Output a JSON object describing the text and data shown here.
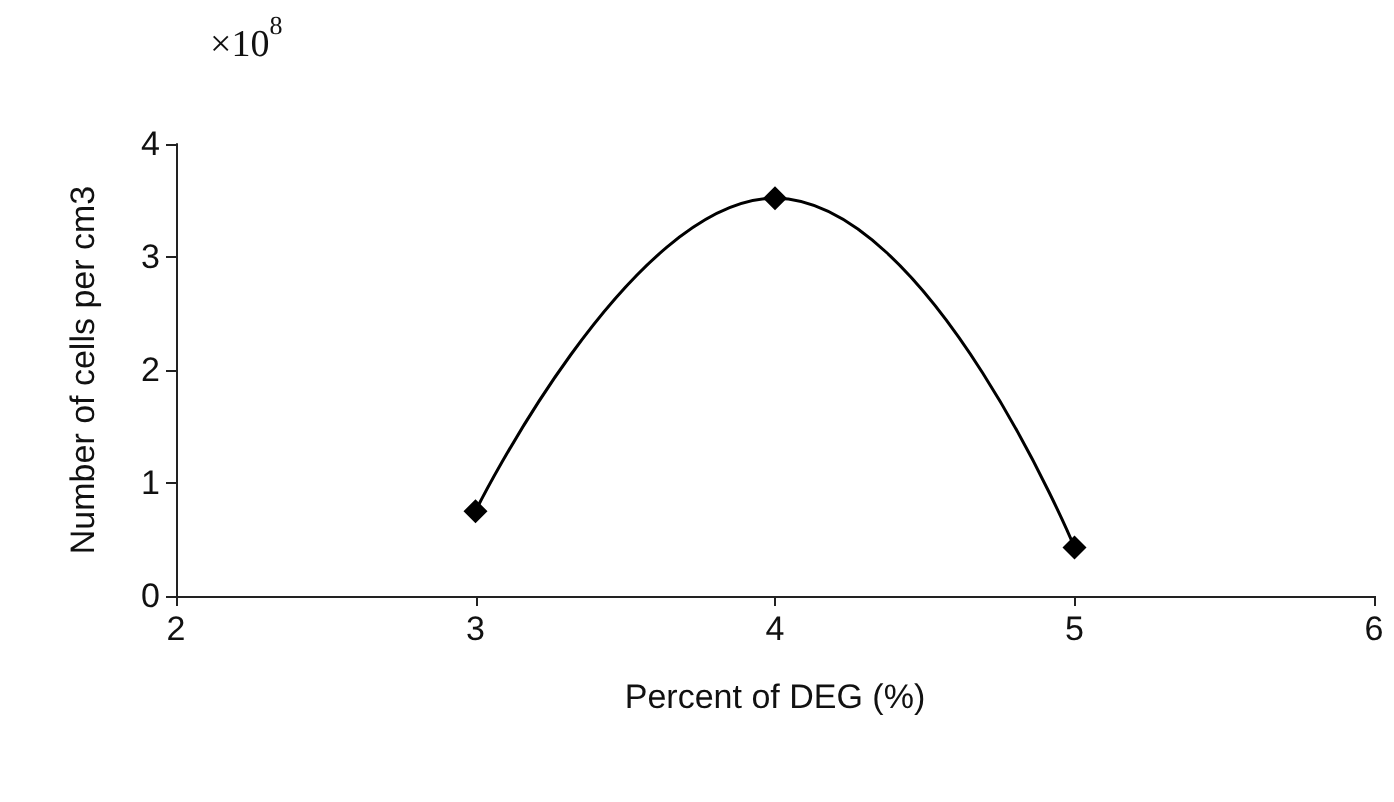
{
  "chart_data": {
    "type": "line",
    "xlabel": "Percent of DEG (%)",
    "ylabel": "Number of cells per cm3",
    "annotations": [
      "×10$^{8}$"
    ],
    "x": [
      3,
      4,
      5
    ],
    "series": [
      {
        "color": "#000000",
        "values": [
          0.75,
          3.52,
          0.43
        ]
      }
    ],
    "xlim": [
      2,
      6
    ],
    "xticks": [
      2,
      3,
      4,
      5,
      6
    ],
    "ylim": [
      0,
      4
    ],
    "yticks": [
      0,
      1,
      2,
      3,
      4
    ],
    "grid": false,
    "marker": "diamond",
    "line_style": "solid"
  }
}
